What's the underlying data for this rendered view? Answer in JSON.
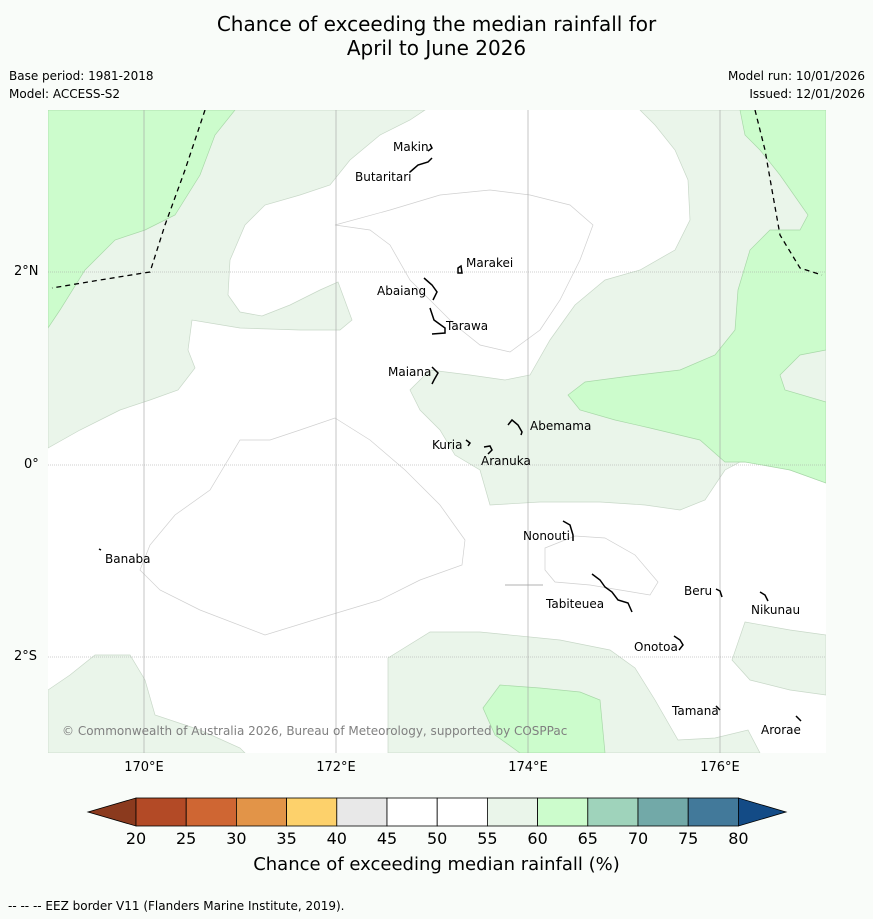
{
  "title": {
    "line1": "Chance of exceeding the median rainfall for",
    "line2": "April to June 2026"
  },
  "meta": {
    "base_period": "Base period: 1981-2018",
    "model": "Model: ACCESS-S2",
    "model_run": "Model run: 10/01/2026",
    "issued": "Issued: 12/01/2026"
  },
  "axes": {
    "lat_labels": [
      "2°N",
      "0°",
      "2°S"
    ],
    "lon_labels": [
      "170°E",
      "172°E",
      "174°E",
      "176°E"
    ]
  },
  "places": {
    "makin": "Makin",
    "butaritari": "Butaritari",
    "marakei": "Marakei",
    "abaiang": "Abaiang",
    "tarawa": "Tarawa",
    "maiana": "Maiana",
    "abemama": "Abemama",
    "kuria": "Kuria",
    "aranuka": "Aranuka",
    "nonouti": "Nonouti",
    "banaba": "Banaba",
    "tabiteuea": "Tabiteuea",
    "beru": "Beru",
    "nikunau": "Nikunau",
    "onotoa": "Onotoa",
    "tamana": "Tamana",
    "arorae": "Arorae"
  },
  "copyright": "© Commonwealth of Australia 2026, Bureau of Meteorology, supported by COSPPac",
  "colorbar": {
    "label": "Chance of exceeding median rainfall (%)",
    "ticks": [
      "20",
      "25",
      "30",
      "35",
      "40",
      "45",
      "50",
      "55",
      "60",
      "65",
      "70",
      "75",
      "80"
    ],
    "colors": [
      "#8b3a1e",
      "#b34a26",
      "#cf6633",
      "#e29448",
      "#fdd16b",
      "#e8e8e8",
      "#ffffff",
      "#ffffff",
      "#eaf5ea",
      "#ccfccc",
      "#9fd3bb",
      "#72a9a8",
      "#42799a",
      "#134b86"
    ]
  },
  "colors": {
    "light_green": "#eaf5ea",
    "green": "#ccfccc",
    "background": "#f9fcf9"
  },
  "footer": "--  --  -- EEZ border V11 (Flanders Marine Institute, 2019)."
}
